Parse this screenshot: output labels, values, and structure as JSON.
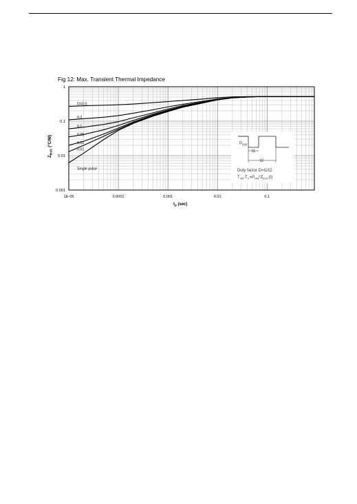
{
  "page": {
    "figure_title": "Fig 12: Max. Transient Thermal Impedance"
  },
  "chart_data": {
    "type": "line",
    "title": "Fig 12: Max. Transient Thermal Impedance",
    "xlabel": "t_p (sec)",
    "ylabel": "Z_thJC (°C/W)",
    "x_scale": "log",
    "y_scale": "log",
    "xlim": [
      1e-05,
      0.9
    ],
    "ylim": [
      0.001,
      1
    ],
    "grid": true,
    "x_ticks": [
      "1E-05",
      "0.0001",
      "0.001",
      "0.01",
      "0.1"
    ],
    "y_ticks": [
      "0.001",
      "0.01",
      "0.1",
      "1"
    ],
    "x": [
      1e-05,
      2e-05,
      5e-05,
      0.0001,
      0.0002,
      0.0005,
      0.001,
      0.002,
      0.005,
      0.01,
      0.02,
      0.05,
      0.1,
      0.2,
      0.5,
      0.9
    ],
    "series": [
      {
        "name": "D=0.5",
        "values": [
          0.27,
          0.28,
          0.29,
          0.3,
          0.315,
          0.345,
          0.37,
          0.4,
          0.44,
          0.48,
          0.51,
          0.52,
          0.52,
          0.52,
          0.52,
          0.52
        ]
      },
      {
        "name": "0.2",
        "values": [
          0.11,
          0.118,
          0.13,
          0.145,
          0.17,
          0.215,
          0.26,
          0.31,
          0.38,
          0.44,
          0.49,
          0.51,
          0.52,
          0.52,
          0.52,
          0.52
        ]
      },
      {
        "name": "0.1",
        "values": [
          0.06,
          0.067,
          0.08,
          0.097,
          0.125,
          0.175,
          0.225,
          0.285,
          0.36,
          0.43,
          0.485,
          0.51,
          0.52,
          0.52,
          0.52,
          0.52
        ]
      },
      {
        "name": "0.05",
        "values": [
          0.035,
          0.041,
          0.056,
          0.075,
          0.105,
          0.16,
          0.21,
          0.27,
          0.35,
          0.425,
          0.48,
          0.51,
          0.52,
          0.52,
          0.52,
          0.52
        ]
      },
      {
        "name": "0.02",
        "values": [
          0.02,
          0.026,
          0.042,
          0.063,
          0.095,
          0.15,
          0.2,
          0.265,
          0.345,
          0.42,
          0.48,
          0.51,
          0.52,
          0.52,
          0.52,
          0.52
        ]
      },
      {
        "name": "0.01",
        "values": [
          0.013,
          0.02,
          0.036,
          0.058,
          0.09,
          0.145,
          0.195,
          0.26,
          0.34,
          0.42,
          0.48,
          0.51,
          0.52,
          0.52,
          0.52,
          0.52
        ]
      },
      {
        "name": "Single pulse",
        "values": [
          0.0062,
          0.0118,
          0.029,
          0.054,
          0.086,
          0.14,
          0.19,
          0.255,
          0.335,
          0.415,
          0.475,
          0.51,
          0.52,
          0.52,
          0.52,
          0.52
        ]
      }
    ],
    "inset": {
      "pulse_label": "P",
      "pulse_label_sub": "DM",
      "t1_label": "t1",
      "t2_label": "t2",
      "duty_text": "Duty factor D=t1/t2",
      "eq_t": "T",
      "eq_jm": "JM",
      "eq_minus": "-T",
      "eq_c": "C",
      "eq_eq": "=P",
      "eq_dm": "DM",
      "eq_times": "*Z",
      "eq_thjc": "thJC",
      "eq_end": "(t)"
    },
    "axis_text": {
      "x_main": "t",
      "x_sub": "p",
      "x_unit": " (sec)",
      "y_main": "Z",
      "y_sub": "thJC",
      "y_unit": " (°C/W)"
    }
  }
}
